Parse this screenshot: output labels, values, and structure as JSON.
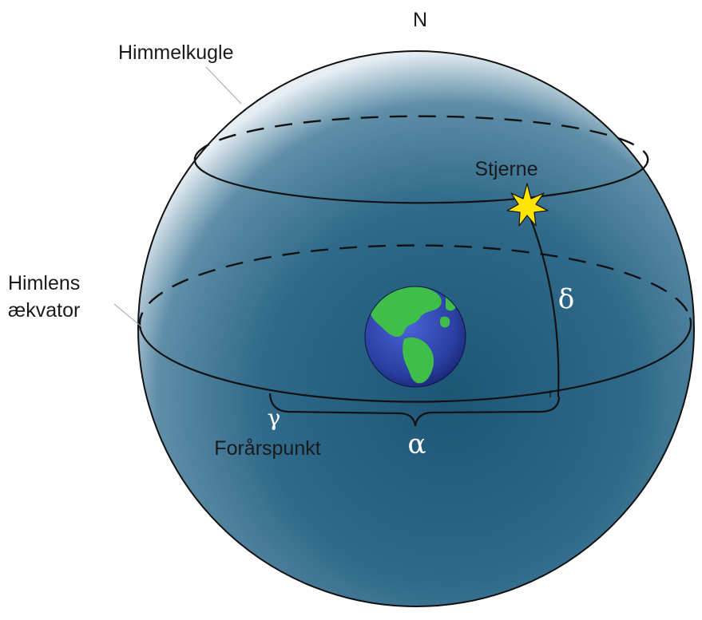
{
  "labels": {
    "north": "N",
    "celestial_sphere": "Himmelkugle",
    "star": "Stjerne",
    "celestial_equator_line1": "Himlens",
    "celestial_equator_line2": "ækvator",
    "declination": "δ",
    "vernal_point_symbol": "γ",
    "vernal_point": "Forårspunkt",
    "right_ascension": "α"
  },
  "colors": {
    "sphere_light": "#e6eef3",
    "sphere_mid": "#5f8ea8",
    "sphere_dark": "#1d5575",
    "earth_ocean": "#2a3fa0",
    "earth_land": "#3fbf4a",
    "star_fill": "#ffe600",
    "star_outline": "#1a1a1a"
  }
}
